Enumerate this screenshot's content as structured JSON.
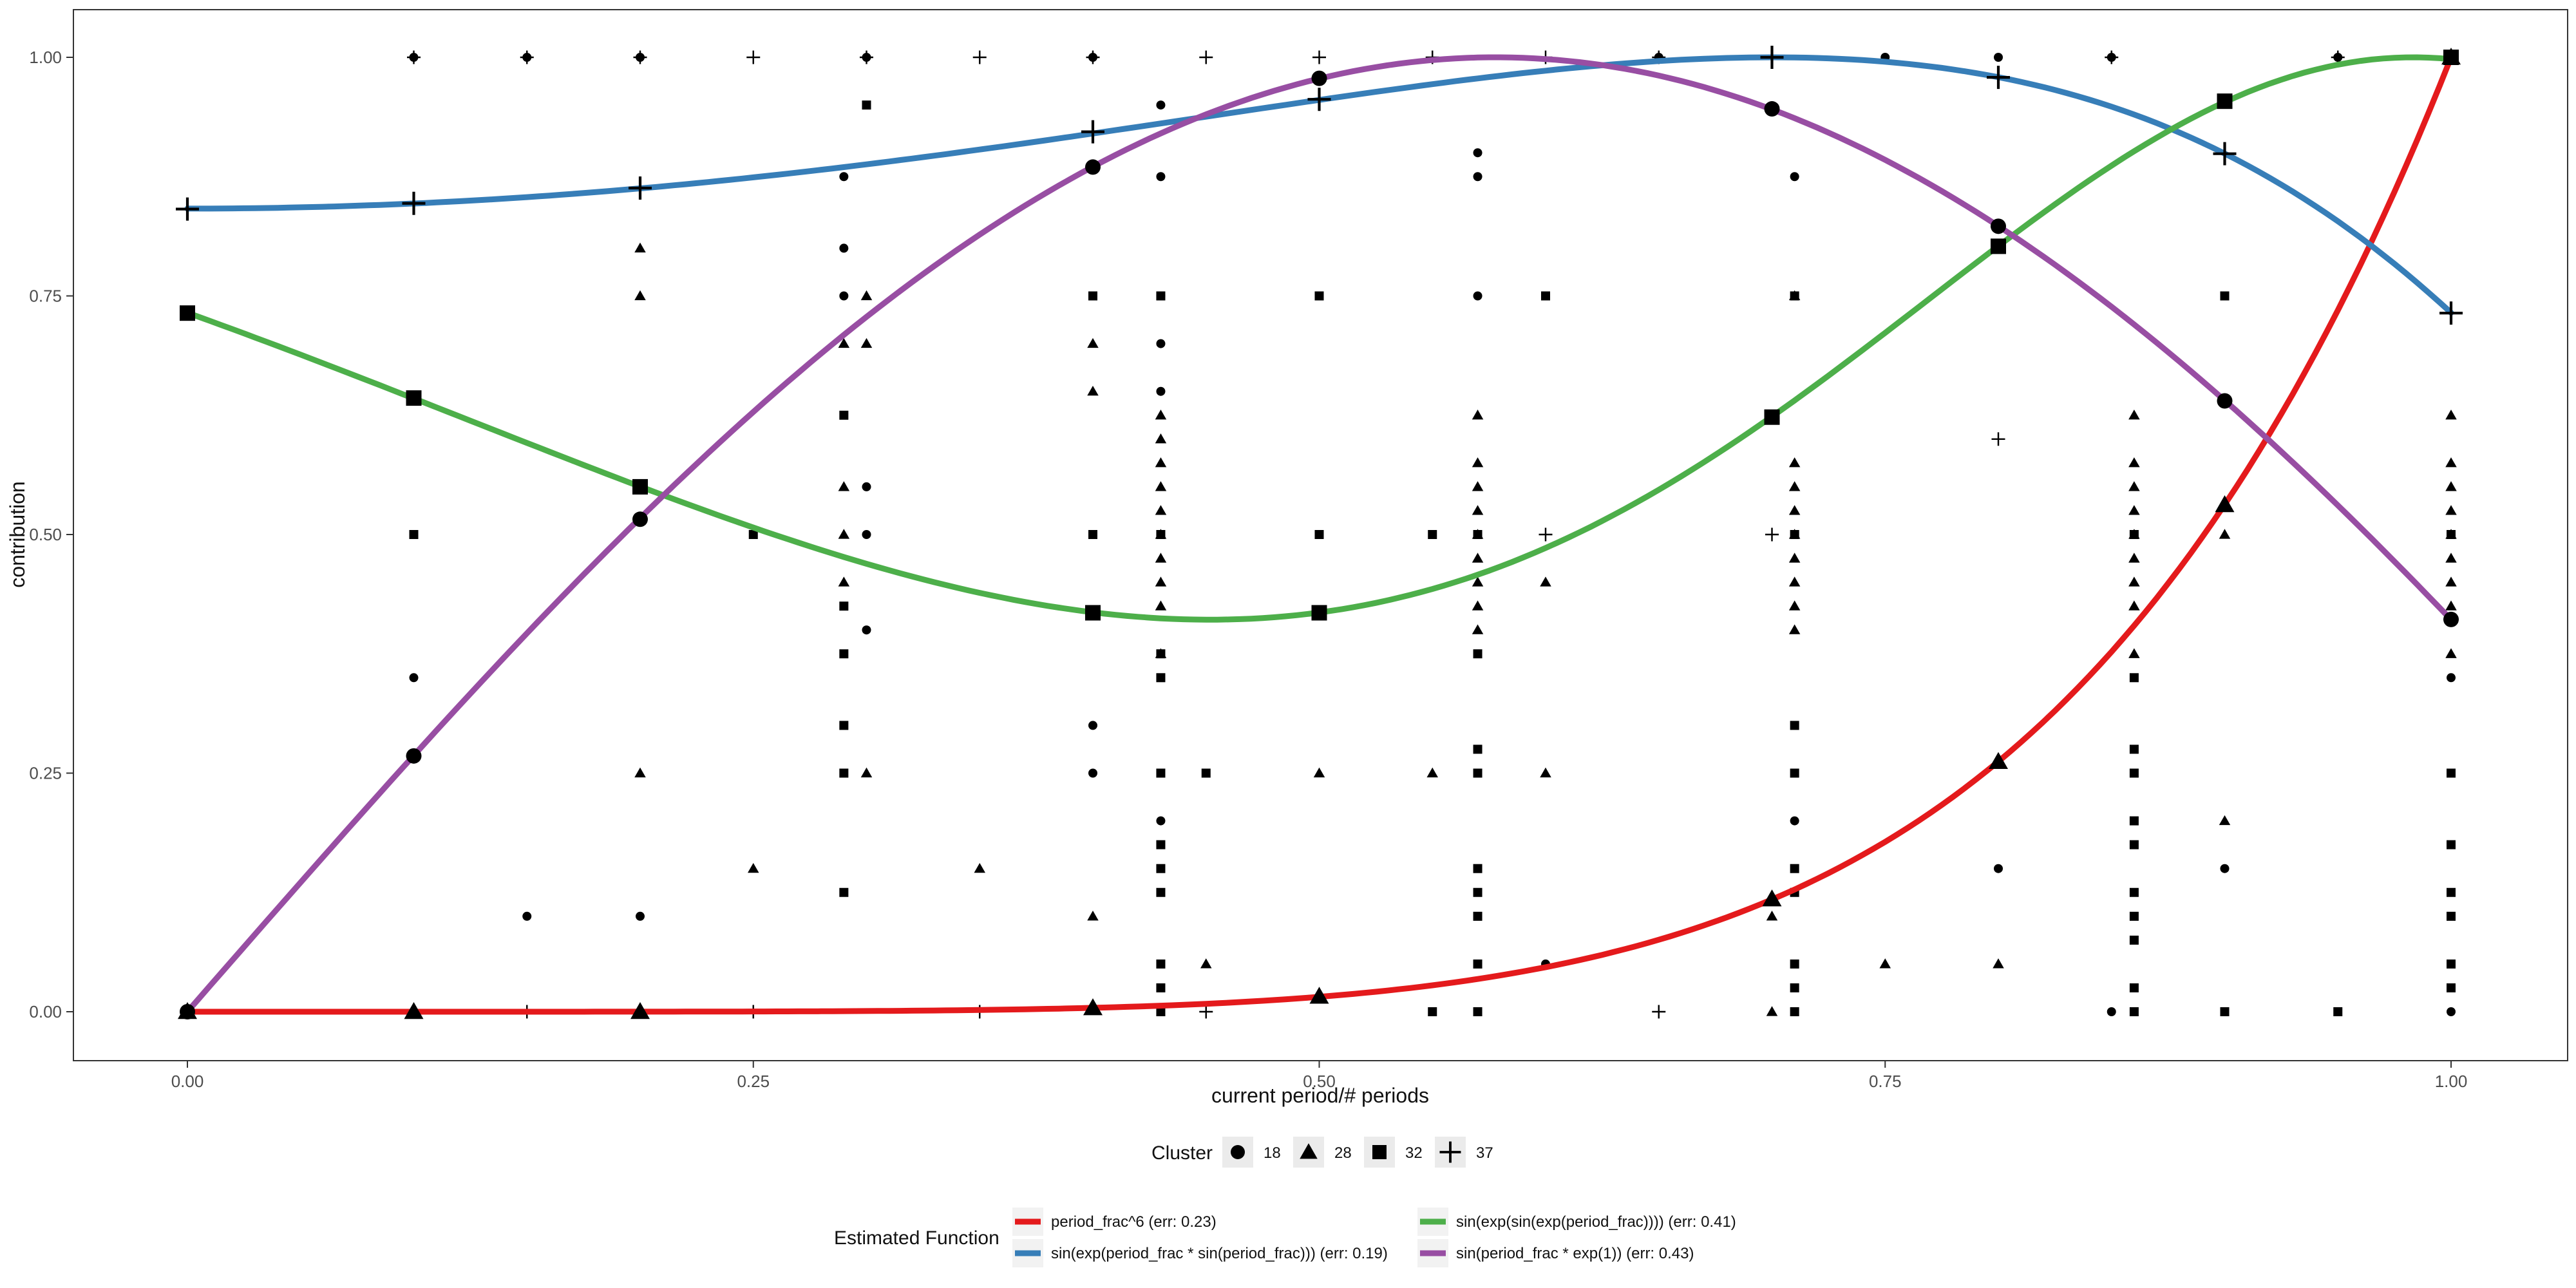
{
  "chart_data": {
    "type": "scatter",
    "xlabel": "current period/# periods",
    "ylabel": "contribution",
    "xlim": [
      0,
      1
    ],
    "ylim": [
      0,
      1
    ],
    "xticks": [
      "0.00",
      "0.25",
      "0.50",
      "0.75",
      "1.00"
    ],
    "yticks": [
      "0.00",
      "0.25",
      "0.50",
      "0.75",
      "1.00"
    ],
    "grid": false,
    "legend_position": "bottom",
    "cluster_legend": {
      "title": "Cluster",
      "items": [
        {
          "label": "18",
          "shape": "circle"
        },
        {
          "label": "28",
          "shape": "triangle"
        },
        {
          "label": "32",
          "shape": "square"
        },
        {
          "label": "37",
          "shape": "plus"
        }
      ]
    },
    "function_legend": {
      "title": "Estimated Function",
      "items": [
        {
          "label": "period_frac^6  (err: 0.23)",
          "color": "#e41a1c"
        },
        {
          "label": "sin(exp(period_frac * sin(period_frac)))  (err: 0.19)",
          "color": "#377eb8"
        },
        {
          "label": "sin(exp(sin(exp(period_frac))))  (err: 0.41)",
          "color": "#4daf4a"
        },
        {
          "label": "sin(period_frac * exp(1))  (err: 0.43)",
          "color": "#984ea3"
        }
      ]
    },
    "curves": [
      {
        "name": "period_frac^6  (err: 0.23)",
        "color": "#e41a1c",
        "shape": "triangle",
        "fn": "pow6",
        "markers": [
          [
            0,
            0
          ],
          [
            0.1,
            0
          ],
          [
            0.2,
            0
          ],
          [
            0.4,
            0.004
          ],
          [
            0.5,
            0.016
          ],
          [
            0.7,
            0.118
          ],
          [
            0.8,
            0.262
          ],
          [
            0.9,
            0.531
          ],
          [
            1.0,
            1.0
          ]
        ]
      },
      {
        "name": "sin(exp(period_frac * sin(period_frac)))  (err: 0.19)",
        "color": "#377eb8",
        "shape": "plus",
        "fn": "blue",
        "markers": [
          [
            0,
            0.841
          ],
          [
            0.1,
            0.847
          ],
          [
            0.2,
            0.863
          ],
          [
            0.4,
            0.922
          ],
          [
            0.5,
            0.956
          ],
          [
            0.7,
            1.0
          ],
          [
            0.8,
            0.979
          ],
          [
            0.9,
            0.899
          ],
          [
            1.0,
            0.732
          ]
        ]
      },
      {
        "name": "sin(exp(sin(exp(period_frac))))  (err: 0.41)",
        "color": "#4daf4a",
        "shape": "square",
        "fn": "green",
        "markers": [
          [
            0,
            0.732
          ],
          [
            0.1,
            0.643
          ],
          [
            0.2,
            0.55
          ],
          [
            0.4,
            0.418
          ],
          [
            0.5,
            0.418
          ],
          [
            0.7,
            0.623
          ],
          [
            0.8,
            0.802
          ],
          [
            0.9,
            0.954
          ],
          [
            1.0,
            1.0
          ]
        ]
      },
      {
        "name": "sin(period_frac * exp(1))  (err: 0.43)",
        "color": "#984ea3",
        "shape": "circle",
        "fn": "purple",
        "markers": [
          [
            0,
            0
          ],
          [
            0.1,
            0.268
          ],
          [
            0.2,
            0.516
          ],
          [
            0.4,
            0.885
          ],
          [
            0.5,
            0.978
          ],
          [
            0.7,
            0.946
          ],
          [
            0.8,
            0.823
          ],
          [
            0.9,
            0.64
          ],
          [
            1.0,
            0.411
          ]
        ]
      }
    ],
    "observations": [
      {
        "cluster": "18",
        "shape": "circle",
        "points": [
          [
            0.1,
            1
          ],
          [
            0.1,
            0.35
          ],
          [
            0.15,
            1
          ],
          [
            0.15,
            0.1
          ],
          [
            0.2,
            1
          ],
          [
            0.2,
            0.1
          ],
          [
            0.3,
            1
          ],
          [
            0.29,
            0.875
          ],
          [
            0.29,
            0.75
          ],
          [
            0.29,
            0.8
          ],
          [
            0.3,
            0.55
          ],
          [
            0.3,
            0.5
          ],
          [
            0.3,
            0.4
          ],
          [
            0.4,
            1
          ],
          [
            0.4,
            0.3
          ],
          [
            0.4,
            0.25
          ],
          [
            0.43,
            0.95
          ],
          [
            0.43,
            0.875
          ],
          [
            0.43,
            0.75
          ],
          [
            0.43,
            0.7
          ],
          [
            0.43,
            0.65
          ],
          [
            0.43,
            0.2
          ],
          [
            0.57,
            0.9
          ],
          [
            0.57,
            0.875
          ],
          [
            0.57,
            0.75
          ],
          [
            0.6,
            0.05
          ],
          [
            0.65,
            1
          ],
          [
            0.71,
            0.875
          ],
          [
            0.71,
            0.2
          ],
          [
            0.75,
            1
          ],
          [
            0.8,
            1
          ],
          [
            0.8,
            0.15
          ],
          [
            0.85,
            1
          ],
          [
            0.85,
            0
          ],
          [
            0.9,
            0.15
          ],
          [
            0.95,
            1
          ],
          [
            1.0,
            0.35
          ],
          [
            1.0,
            0.25
          ],
          [
            1.0,
            0
          ]
        ]
      },
      {
        "cluster": "28",
        "shape": "triangle",
        "points": [
          [
            0.2,
            0.8
          ],
          [
            0.2,
            0.75
          ],
          [
            0.2,
            0.25
          ],
          [
            0.25,
            0.15
          ],
          [
            0.29,
            0.7
          ],
          [
            0.29,
            0.55
          ],
          [
            0.29,
            0.5
          ],
          [
            0.29,
            0.45
          ],
          [
            0.3,
            0.75
          ],
          [
            0.3,
            0.7
          ],
          [
            0.3,
            0.25
          ],
          [
            0.35,
            0.15
          ],
          [
            0.4,
            0.7
          ],
          [
            0.4,
            0.65
          ],
          [
            0.4,
            0.1
          ],
          [
            0.43,
            0.625
          ],
          [
            0.43,
            0.6
          ],
          [
            0.43,
            0.575
          ],
          [
            0.43,
            0.55
          ],
          [
            0.43,
            0.525
          ],
          [
            0.43,
            0.5
          ],
          [
            0.43,
            0.475
          ],
          [
            0.43,
            0.45
          ],
          [
            0.43,
            0.425
          ],
          [
            0.43,
            0.375
          ],
          [
            0.45,
            0.05
          ],
          [
            0.5,
            0.25
          ],
          [
            0.55,
            0.25
          ],
          [
            0.57,
            0.625
          ],
          [
            0.57,
            0.575
          ],
          [
            0.57,
            0.55
          ],
          [
            0.57,
            0.525
          ],
          [
            0.57,
            0.5
          ],
          [
            0.57,
            0.475
          ],
          [
            0.57,
            0.45
          ],
          [
            0.57,
            0.425
          ],
          [
            0.57,
            0.4
          ],
          [
            0.6,
            0.45
          ],
          [
            0.6,
            0.25
          ],
          [
            0.7,
            0.1
          ],
          [
            0.7,
            0
          ],
          [
            0.71,
            0.75
          ],
          [
            0.71,
            0.575
          ],
          [
            0.71,
            0.55
          ],
          [
            0.71,
            0.525
          ],
          [
            0.71,
            0.5
          ],
          [
            0.71,
            0.475
          ],
          [
            0.71,
            0.45
          ],
          [
            0.71,
            0.425
          ],
          [
            0.71,
            0.4
          ],
          [
            0.75,
            0.05
          ],
          [
            0.8,
            0.05
          ],
          [
            0.86,
            0.625
          ],
          [
            0.86,
            0.575
          ],
          [
            0.86,
            0.55
          ],
          [
            0.86,
            0.525
          ],
          [
            0.86,
            0.5
          ],
          [
            0.86,
            0.475
          ],
          [
            0.86,
            0.45
          ],
          [
            0.86,
            0.425
          ],
          [
            0.86,
            0.375
          ],
          [
            0.9,
            0.5
          ],
          [
            0.9,
            0.2
          ],
          [
            1.0,
            0.625
          ],
          [
            1.0,
            0.575
          ],
          [
            1.0,
            0.55
          ],
          [
            1.0,
            0.525
          ],
          [
            1.0,
            0.5
          ],
          [
            1.0,
            0.475
          ],
          [
            1.0,
            0.45
          ],
          [
            1.0,
            0.425
          ],
          [
            1.0,
            0.375
          ]
        ]
      },
      {
        "cluster": "32",
        "shape": "square",
        "points": [
          [
            0.1,
            0.5
          ],
          [
            0.25,
            0.5
          ],
          [
            0.29,
            0.625
          ],
          [
            0.29,
            0.425
          ],
          [
            0.29,
            0.375
          ],
          [
            0.29,
            0.3
          ],
          [
            0.29,
            0.25
          ],
          [
            0.29,
            0.125
          ],
          [
            0.3,
            0.95
          ],
          [
            0.4,
            0.75
          ],
          [
            0.4,
            0.5
          ],
          [
            0.43,
            0.75
          ],
          [
            0.43,
            0.5
          ],
          [
            0.43,
            0.375
          ],
          [
            0.43,
            0.35
          ],
          [
            0.43,
            0.25
          ],
          [
            0.43,
            0.175
          ],
          [
            0.43,
            0.15
          ],
          [
            0.43,
            0.125
          ],
          [
            0.43,
            0.05
          ],
          [
            0.43,
            0.025
          ],
          [
            0.43,
            0
          ],
          [
            0.45,
            0.25
          ],
          [
            0.5,
            0.75
          ],
          [
            0.5,
            0.5
          ],
          [
            0.55,
            0.5
          ],
          [
            0.55,
            0
          ],
          [
            0.57,
            0.5
          ],
          [
            0.57,
            0.375
          ],
          [
            0.57,
            0.275
          ],
          [
            0.57,
            0.25
          ],
          [
            0.57,
            0.15
          ],
          [
            0.57,
            0.125
          ],
          [
            0.57,
            0.1
          ],
          [
            0.57,
            0.05
          ],
          [
            0.57,
            0
          ],
          [
            0.6,
            0.75
          ],
          [
            0.71,
            0.75
          ],
          [
            0.71,
            0.5
          ],
          [
            0.71,
            0.3
          ],
          [
            0.71,
            0.25
          ],
          [
            0.71,
            0.15
          ],
          [
            0.71,
            0.125
          ],
          [
            0.71,
            0.05
          ],
          [
            0.71,
            0.025
          ],
          [
            0.71,
            0
          ],
          [
            0.86,
            0.5
          ],
          [
            0.86,
            0.35
          ],
          [
            0.86,
            0.275
          ],
          [
            0.86,
            0.25
          ],
          [
            0.86,
            0.2
          ],
          [
            0.86,
            0.175
          ],
          [
            0.86,
            0.125
          ],
          [
            0.86,
            0.1
          ],
          [
            0.86,
            0.075
          ],
          [
            0.86,
            0.025
          ],
          [
            0.86,
            0
          ],
          [
            0.9,
            0.75
          ],
          [
            0.9,
            0
          ],
          [
            0.95,
            0
          ],
          [
            1.0,
            0.5
          ],
          [
            1.0,
            0.25
          ],
          [
            1.0,
            0.175
          ],
          [
            1.0,
            0.125
          ],
          [
            1.0,
            0.1
          ],
          [
            1.0,
            0.05
          ],
          [
            1.0,
            0.025
          ]
        ]
      },
      {
        "cluster": "37",
        "shape": "plus",
        "points": [
          [
            0.1,
            1
          ],
          [
            0.15,
            1
          ],
          [
            0.2,
            1
          ],
          [
            0.25,
            1
          ],
          [
            0.3,
            1
          ],
          [
            0.35,
            1
          ],
          [
            0.4,
            1
          ],
          [
            0.45,
            1
          ],
          [
            0.5,
            1
          ],
          [
            0.55,
            1
          ],
          [
            0.6,
            1
          ],
          [
            0.65,
            1
          ],
          [
            0.7,
            1
          ],
          [
            0.7,
            0.5
          ],
          [
            0.8,
            0.6
          ],
          [
            0.6,
            0.5
          ],
          [
            0.85,
            1
          ],
          [
            0.95,
            1
          ],
          [
            0.15,
            0
          ],
          [
            0.2,
            0
          ],
          [
            0.25,
            0
          ],
          [
            0.35,
            0
          ],
          [
            0.45,
            0
          ],
          [
            0.65,
            0
          ]
        ]
      }
    ]
  }
}
